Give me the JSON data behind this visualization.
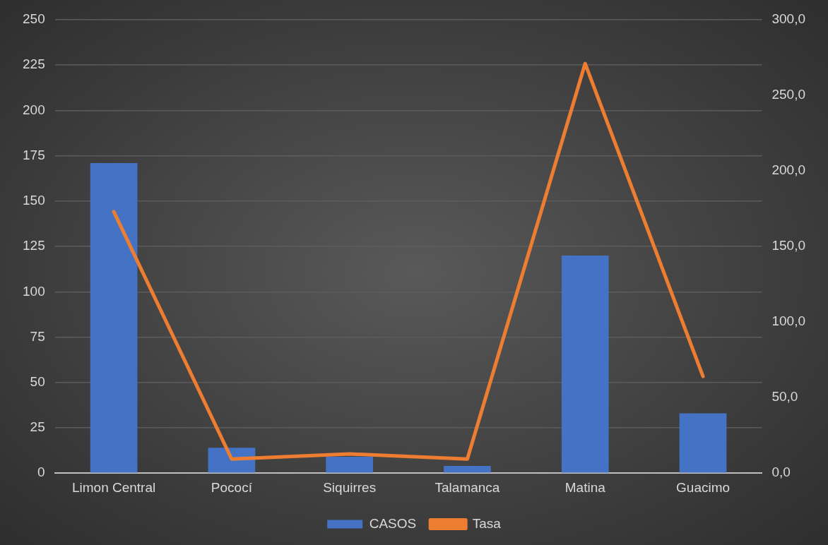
{
  "chart_data": {
    "type": "bar",
    "categories": [
      "Limon Central",
      "Pococí",
      "Siquirres",
      "Talamanca",
      "Matina",
      "Guacimo"
    ],
    "series": [
      {
        "name": "CASOS",
        "color": "#4472c4",
        "values": [
          171,
          14,
          9,
          4,
          120,
          33
        ]
      },
      {
        "name": "Tasa",
        "type": "line",
        "axis": "y2",
        "color": "#ed7d31",
        "values": [
          173,
          9.3,
          12.7,
          9.3,
          271,
          64
        ]
      }
    ],
    "ylim": [
      0,
      250
    ],
    "yticks": [
      0,
      25,
      50,
      75,
      100,
      125,
      150,
      175,
      200,
      225,
      250
    ],
    "y2lim": [
      0,
      300
    ],
    "y2ticks": [
      {
        "value": 0,
        "label": "0,0"
      },
      {
        "value": 50,
        "label": "50,0"
      },
      {
        "value": 100,
        "label": "100,0"
      },
      {
        "value": 150,
        "label": "150,0"
      },
      {
        "value": 200,
        "label": "200,0"
      },
      {
        "value": 250,
        "label": "250,0"
      },
      {
        "value": 300,
        "label": "300,0"
      }
    ],
    "grid": "y",
    "legend": "bottom",
    "marker": "none",
    "line_style": "solid"
  }
}
